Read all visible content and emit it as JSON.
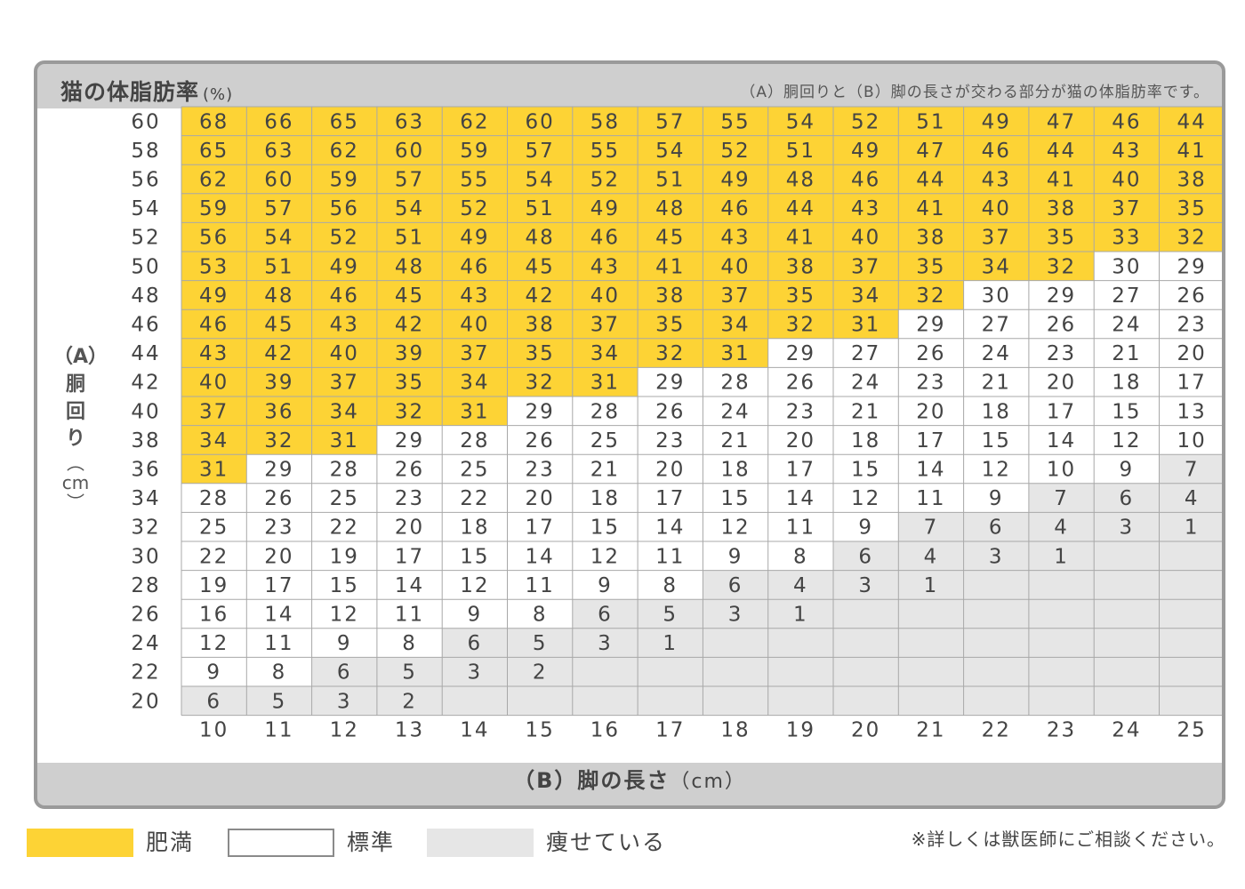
{
  "header": {
    "title": "猫の体脂肪率",
    "title_unit": "(%)",
    "note": "（A）胴回りと（B）脚の長さが交わる部分が猫の体脂肪率です。"
  },
  "yaxis": {
    "label_prefix": "（A）",
    "label_chars": [
      "胴",
      "回",
      "り"
    ],
    "label_unit": [
      "︵",
      "cm",
      "︶"
    ]
  },
  "xaxis": {
    "label": "（B）脚の長さ",
    "unit": "（cm）"
  },
  "legend": [
    {
      "label": "肥満",
      "color": "#fdd335"
    },
    {
      "label": "標準",
      "color": "#ffffff"
    },
    {
      "label": "痩せている",
      "color": "#e6e6e6"
    }
  ],
  "footnote": "※詳しくは獣医師にご相談ください。",
  "chart_data": {
    "type": "table",
    "title": "猫の体脂肪率 (%)",
    "xlabel": "（B）脚の長さ（cm）",
    "ylabel": "（A）胴回り（cm）",
    "x": [
      10,
      11,
      12,
      13,
      14,
      15,
      16,
      17,
      18,
      19,
      20,
      21,
      22,
      23,
      24,
      25
    ],
    "y": [
      60,
      58,
      56,
      54,
      52,
      50,
      48,
      46,
      44,
      42,
      40,
      38,
      36,
      34,
      32,
      30,
      28,
      26,
      24,
      22,
      20
    ],
    "values": [
      [
        68,
        66,
        65,
        63,
        62,
        60,
        58,
        57,
        55,
        54,
        52,
        51,
        49,
        47,
        46,
        44
      ],
      [
        65,
        63,
        62,
        60,
        59,
        57,
        55,
        54,
        52,
        51,
        49,
        47,
        46,
        44,
        43,
        41
      ],
      [
        62,
        60,
        59,
        57,
        55,
        54,
        52,
        51,
        49,
        48,
        46,
        44,
        43,
        41,
        40,
        38
      ],
      [
        59,
        57,
        56,
        54,
        52,
        51,
        49,
        48,
        46,
        44,
        43,
        41,
        40,
        38,
        37,
        35
      ],
      [
        56,
        54,
        52,
        51,
        49,
        48,
        46,
        45,
        43,
        41,
        40,
        38,
        37,
        35,
        33,
        32
      ],
      [
        53,
        51,
        49,
        48,
        46,
        45,
        43,
        41,
        40,
        38,
        37,
        35,
        34,
        32,
        30,
        29
      ],
      [
        49,
        48,
        46,
        45,
        43,
        42,
        40,
        38,
        37,
        35,
        34,
        32,
        30,
        29,
        27,
        26
      ],
      [
        46,
        45,
        43,
        42,
        40,
        38,
        37,
        35,
        34,
        32,
        31,
        29,
        27,
        26,
        24,
        23
      ],
      [
        43,
        42,
        40,
        39,
        37,
        35,
        34,
        32,
        31,
        29,
        27,
        26,
        24,
        23,
        21,
        20
      ],
      [
        40,
        39,
        37,
        35,
        34,
        32,
        31,
        29,
        28,
        26,
        24,
        23,
        21,
        20,
        18,
        17
      ],
      [
        37,
        36,
        34,
        32,
        31,
        29,
        28,
        26,
        24,
        23,
        21,
        20,
        18,
        17,
        15,
        13
      ],
      [
        34,
        32,
        31,
        29,
        28,
        26,
        25,
        23,
        21,
        20,
        18,
        17,
        15,
        14,
        12,
        10
      ],
      [
        31,
        29,
        28,
        26,
        25,
        23,
        21,
        20,
        18,
        17,
        15,
        14,
        12,
        10,
        9,
        7
      ],
      [
        28,
        26,
        25,
        23,
        22,
        20,
        18,
        17,
        15,
        14,
        12,
        11,
        9,
        7,
        6,
        4
      ],
      [
        25,
        23,
        22,
        20,
        18,
        17,
        15,
        14,
        12,
        11,
        9,
        7,
        6,
        4,
        3,
        1
      ],
      [
        22,
        20,
        19,
        17,
        15,
        14,
        12,
        11,
        9,
        8,
        6,
        4,
        3,
        1,
        null,
        null
      ],
      [
        19,
        17,
        15,
        14,
        12,
        11,
        9,
        8,
        6,
        4,
        3,
        1,
        null,
        null,
        null,
        null
      ],
      [
        16,
        14,
        12,
        11,
        9,
        8,
        6,
        5,
        3,
        1,
        null,
        null,
        null,
        null,
        null,
        null
      ],
      [
        12,
        11,
        9,
        8,
        6,
        5,
        3,
        1,
        null,
        null,
        null,
        null,
        null,
        null,
        null,
        null
      ],
      [
        9,
        8,
        6,
        5,
        3,
        2,
        null,
        null,
        null,
        null,
        null,
        null,
        null,
        null,
        null,
        null
      ],
      [
        6,
        5,
        3,
        2,
        null,
        null,
        null,
        null,
        null,
        null,
        null,
        null,
        null,
        null,
        null,
        null
      ]
    ],
    "category_thresholds": {
      "肥満": "≥ 31",
      "標準": "8 – 29",
      "痩せている": "≤ 7 / blank"
    },
    "colors": {
      "obese": "#fdd335",
      "standard": "#ffffff",
      "thin": "#e6e6e6"
    }
  }
}
